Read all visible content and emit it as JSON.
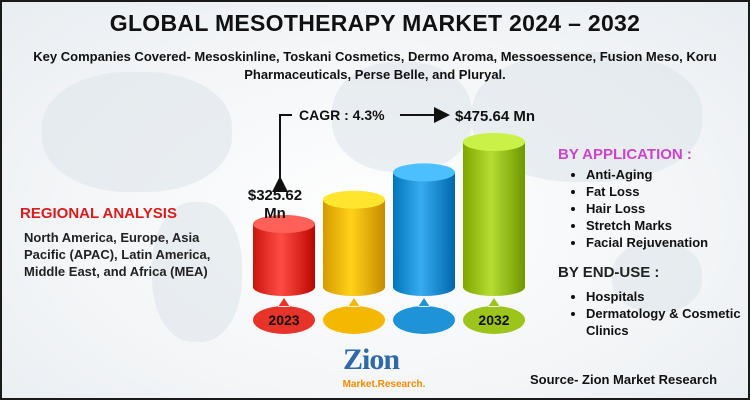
{
  "title": "GLOBAL MESOTHERAPY MARKET 2024 – 2032",
  "subtitle": "Key Companies Covered- Mesoskinline, Toskani Cosmetics, Dermo Aroma, Messoessence, Fusion Meso, Koru Pharmaceuticals, Perse Belle, and Pluryal.",
  "regional": {
    "heading": "REGIONAL ANALYSIS",
    "text": "North America, Europe, Asia Pacific (APAC), Latin America, Middle East, and Africa (MEA)"
  },
  "application": {
    "heading": "BY APPLICATION :",
    "items": [
      "Anti-Aging",
      "Fat Loss",
      "Hair Loss",
      "Stretch Marks",
      "Facial Rejuvenation"
    ]
  },
  "end_use": {
    "heading": "BY END-USE :",
    "items": [
      "Hospitals",
      "Dermatology & Cosmetic Clinics"
    ]
  },
  "source": "Source- Zion Market Research",
  "logo": {
    "big": "Zion",
    "small": "Market.Research."
  },
  "chart_data": {
    "type": "bar",
    "categories": [
      "2023",
      "",
      "",
      "2032"
    ],
    "values": [
      325.62,
      370,
      420,
      475.64
    ],
    "value_labels": [
      "$325.62 Mn",
      "",
      "",
      "$475.64 Mn"
    ],
    "cagr_label": "CAGR : 4.3%",
    "ylim": [
      0,
      500
    ],
    "colors": [
      "#e8332b",
      "#f5b800",
      "#1f93d8",
      "#9cc41a"
    ],
    "grid": false,
    "legend": "none"
  }
}
